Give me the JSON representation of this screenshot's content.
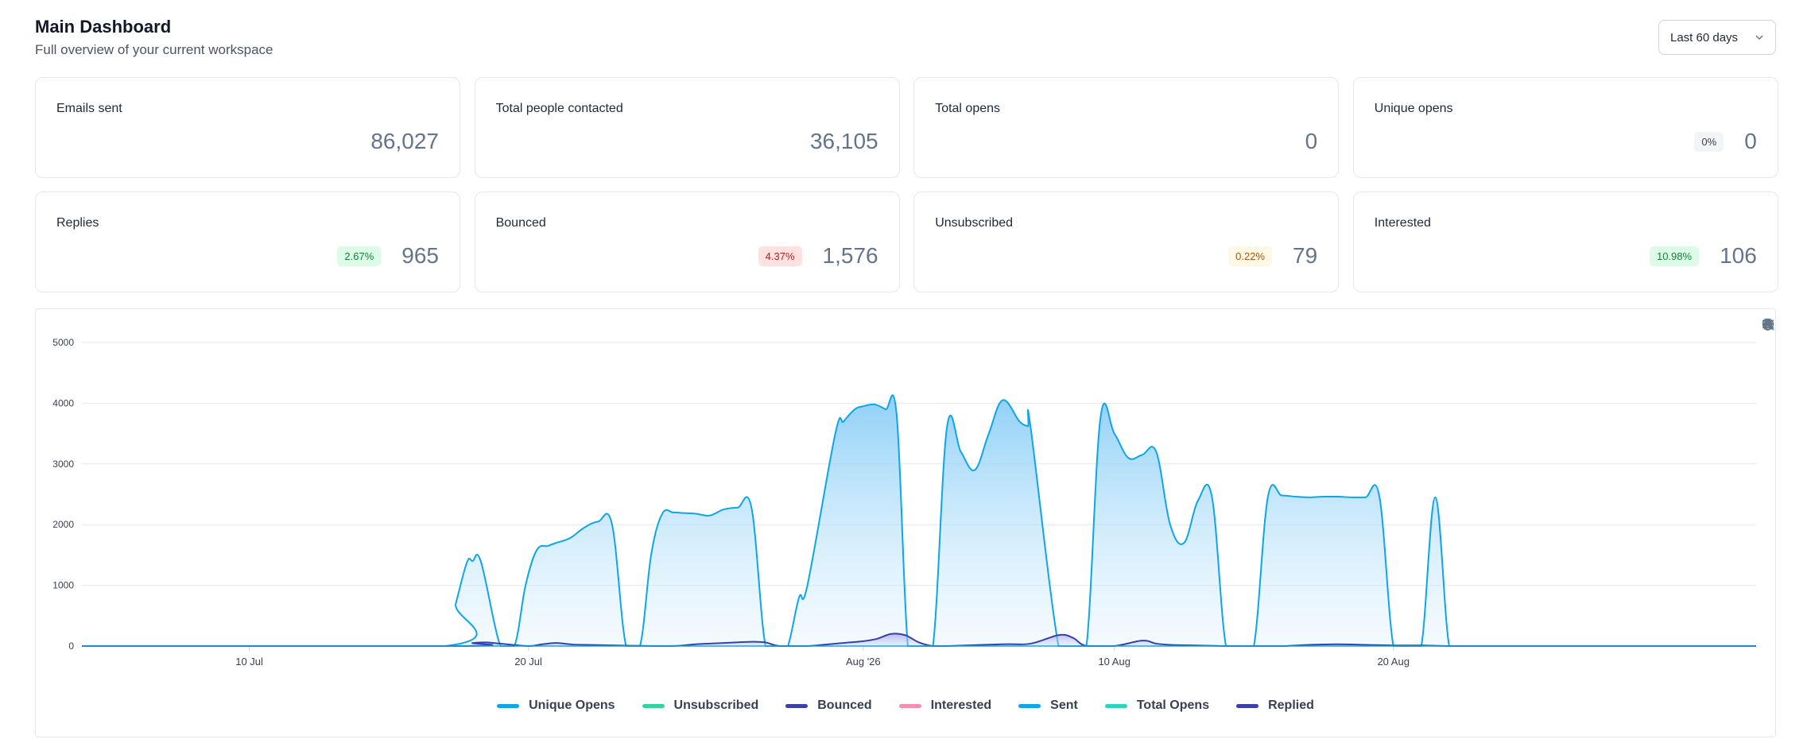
{
  "header": {
    "title": "Main Dashboard",
    "subtitle": "Full overview of your current workspace"
  },
  "range_select": {
    "value": "Last 60 days",
    "icon": "chevron-down-icon"
  },
  "cards": [
    {
      "label": "Emails sent",
      "value": "86,027",
      "badge": "",
      "badge_tone": ""
    },
    {
      "label": "Total people contacted",
      "value": "36,105",
      "badge": "",
      "badge_tone": ""
    },
    {
      "label": "Total opens",
      "value": "0",
      "badge": "",
      "badge_tone": ""
    },
    {
      "label": "Unique opens",
      "value": "0",
      "badge": "0%",
      "badge_tone": "neutral"
    },
    {
      "label": "Replies",
      "value": "965",
      "badge": "2.67%",
      "badge_tone": "green"
    },
    {
      "label": "Bounced",
      "value": "1,576",
      "badge": "4.37%",
      "badge_tone": "red"
    },
    {
      "label": "Unsubscribed",
      "value": "79",
      "badge": "0.22%",
      "badge_tone": "amber"
    },
    {
      "label": "Interested",
      "value": "106",
      "badge": "10.98%",
      "badge_tone": "green"
    }
  ],
  "toolbar": [
    "zoom-in-icon",
    "zoom-out-icon",
    "selection-zoom-icon",
    "pan-hand-icon",
    "reset-home-icon",
    "menu-icon"
  ],
  "chart_data": {
    "type": "area",
    "ylim": [
      0,
      5000
    ],
    "y_ticks": [
      "5000",
      "4000",
      "3000",
      "2000",
      "1000",
      "0"
    ],
    "x_tick_labels": [
      {
        "label": "10 Jul",
        "day": 6
      },
      {
        "label": "20 Jul",
        "day": 16
      },
      {
        "label": "Aug '26",
        "day": 28
      },
      {
        "label": "10 Aug",
        "day": 37
      },
      {
        "label": "20 Aug",
        "day": 47
      }
    ],
    "grid": true,
    "legend_position": "bottom",
    "series": [
      {
        "name": "Unique Opens",
        "color": "#0ea5e9",
        "values": []
      },
      {
        "name": "Unsubscribed",
        "color": "#34d399",
        "values": []
      },
      {
        "name": "Bounced",
        "color": "#3b3fa8",
        "values": []
      },
      {
        "name": "Interested",
        "color": "#f48fb1",
        "values": []
      },
      {
        "name": "Sent",
        "color": "#0ea5e9",
        "x": [
          0,
          13,
          13.4,
          13.8,
          14,
          14.3,
          15,
          15.5,
          15.9,
          16.3,
          16.7,
          17,
          17.5,
          18,
          18.5,
          19,
          19.5,
          20,
          20.4,
          20.8,
          21.2,
          21.6,
          22,
          22.5,
          23,
          23.5,
          24,
          24.5,
          25,
          25.3,
          25.7,
          26,
          27,
          27.3,
          27.7,
          28,
          28.4,
          28.8,
          29.2,
          29.6,
          30,
          30.5,
          31,
          31.5,
          32,
          32.5,
          33,
          33.6,
          33.9,
          34,
          35,
          35.5,
          36,
          36.5,
          37,
          37.5,
          38,
          38.5,
          39,
          39.5,
          40,
          40.5,
          41,
          41.5,
          42,
          42.5,
          43,
          43.5,
          44,
          44.5,
          45,
          45.5,
          46,
          46.5,
          47,
          47.5,
          48,
          48.5,
          49,
          49.5,
          50,
          50.5,
          51,
          51.5,
          52,
          52.5,
          53,
          53.5,
          54,
          54.5,
          55,
          55.5,
          56,
          56.5,
          57,
          57.5,
          58,
          58.5,
          59,
          59.5,
          60
        ],
        "values": [
          0,
          0,
          700,
          1380,
          1400,
          1390,
          0,
          0,
          1000,
          1580,
          1650,
          1700,
          1780,
          1950,
          2050,
          2000,
          0,
          0,
          1500,
          2180,
          2200,
          2190,
          2180,
          2150,
          2250,
          2280,
          2270,
          0,
          0,
          0,
          800,
          1000,
          3500,
          3700,
          3900,
          3950,
          3980,
          3900,
          3800,
          0,
          0,
          0,
          3600,
          3200,
          2900,
          3500,
          4050,
          3700,
          3620,
          3600,
          0,
          0,
          0,
          3750,
          3500,
          3100,
          3150,
          3200,
          2000,
          1700,
          2400,
          2450,
          0,
          0,
          0,
          2450,
          2480,
          2460,
          2450,
          2460,
          2460,
          2450,
          2450,
          2460,
          0,
          0,
          0,
          2450,
          0,
          0,
          0,
          0,
          0,
          0,
          0,
          0,
          0,
          0,
          0,
          0,
          0,
          0,
          0,
          0,
          0,
          0,
          0,
          0,
          0,
          0,
          0
        ]
      },
      {
        "name": "Total Opens",
        "color": "#2dd4bf",
        "values": []
      },
      {
        "name": "Replied",
        "color": "#3b3fa8",
        "x": [
          0,
          13.5,
          14,
          14.5,
          15,
          16,
          16.5,
          17,
          17.5,
          18,
          21,
          22,
          23,
          24,
          24.5,
          25,
          26,
          27,
          28,
          28.5,
          29,
          29.5,
          30,
          30.5,
          31,
          33,
          34,
          35,
          35.5,
          36,
          37,
          38,
          38.5,
          39,
          40,
          41,
          42,
          43,
          44,
          45,
          46,
          47,
          48,
          49,
          50,
          51,
          52,
          53,
          60
        ],
        "values": [
          0,
          0,
          50,
          60,
          40,
          0,
          30,
          50,
          30,
          20,
          0,
          30,
          50,
          70,
          60,
          0,
          0,
          40,
          80,
          120,
          200,
          180,
          60,
          0,
          0,
          30,
          40,
          180,
          140,
          0,
          0,
          90,
          40,
          20,
          10,
          0,
          0,
          0,
          20,
          30,
          20,
          10,
          10,
          0,
          0,
          0,
          0,
          0,
          0
        ]
      }
    ],
    "legend": [
      "Unique Opens",
      "Unsubscribed",
      "Bounced",
      "Interested",
      "Sent",
      "Total Opens",
      "Replied"
    ]
  }
}
